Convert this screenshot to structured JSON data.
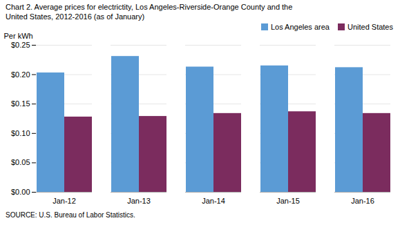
{
  "chart_data": {
    "type": "bar",
    "title": "Chart 2. Average prices for electrictity, Los Angeles-Riverside-Orange County and the\nUnited States, 2012-2016 (as of January)",
    "ylabel": "Per kWh",
    "annotations": [
      "SOURCE: U.S. Bureau of Labor Statistics."
    ],
    "categories": [
      "Jan-12",
      "Jan-13",
      "Jan-14",
      "Jan-15",
      "Jan-16"
    ],
    "series": [
      {
        "name": "Los Angeles area",
        "color": "#5B9BD5",
        "values": [
          0.203,
          0.231,
          0.213,
          0.215,
          0.212
        ]
      },
      {
        "name": "United States",
        "color": "#7B2C5E",
        "values": [
          0.128,
          0.129,
          0.134,
          0.137,
          0.134
        ]
      }
    ],
    "ylim": [
      0,
      0.25
    ],
    "yticks": [
      {
        "value": 0,
        "label": "$0.00"
      },
      {
        "value": 0.05,
        "label": "$0.05"
      },
      {
        "value": 0.1,
        "label": "$0.10"
      },
      {
        "value": 0.15,
        "label": "$0.15"
      },
      {
        "value": 0.2,
        "label": "$0.20"
      },
      {
        "value": 0.25,
        "label": "$0.25"
      }
    ],
    "grid": true,
    "legend": "upper right"
  }
}
